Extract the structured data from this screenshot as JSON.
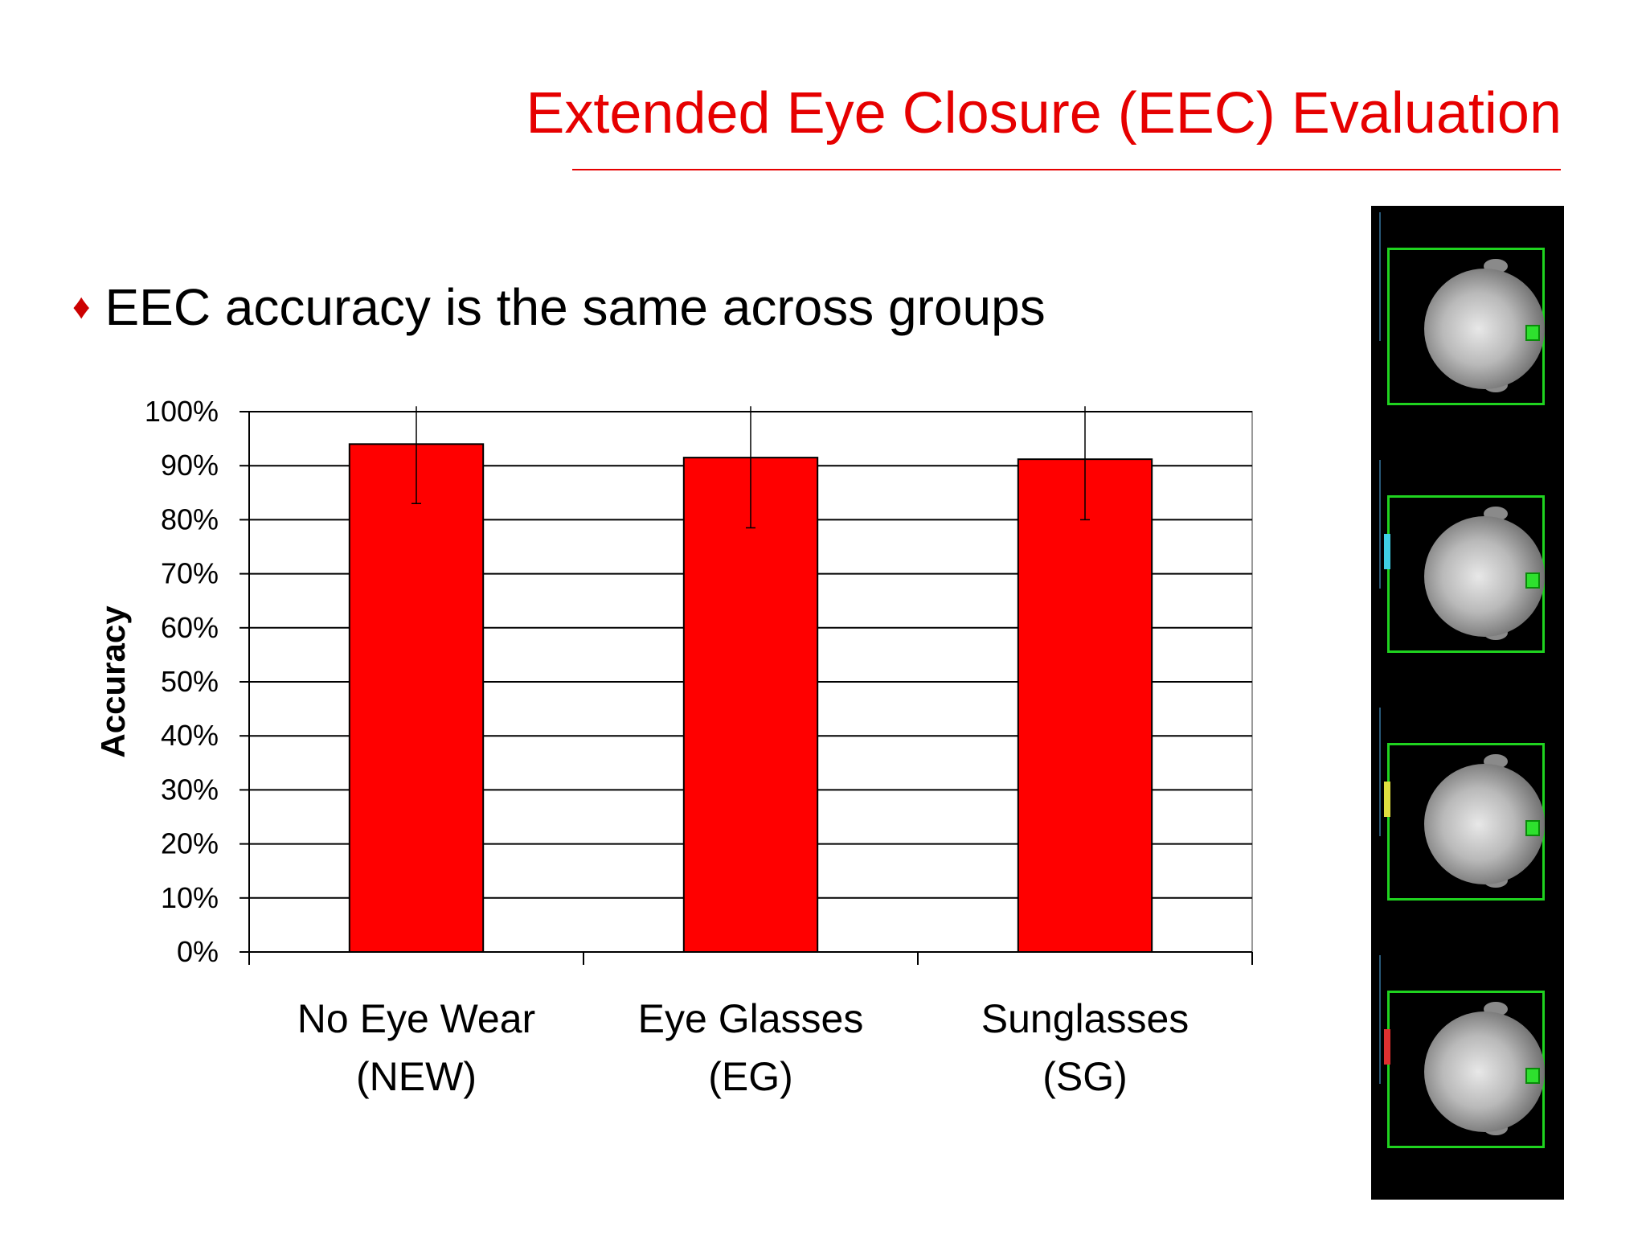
{
  "slide": {
    "title": "Extended Eye Closure (EEC) Evaluation",
    "bullet_symbol": "♦",
    "bullet_text": "EEC accuracy is the same across groups"
  },
  "colors": {
    "title": "#e60000",
    "bar": "#ff0000",
    "frame_box": "#1fd31f"
  },
  "chart_data": {
    "type": "bar",
    "categories": [
      [
        "No Eye Wear",
        "(NEW)"
      ],
      [
        "Eye Glasses",
        "(EG)"
      ],
      [
        "Sunglasses",
        "(SG)"
      ]
    ],
    "values": [
      0.94,
      0.915,
      0.912
    ],
    "error_high": [
      1.01,
      1.01,
      1.01
    ],
    "error_low": [
      0.83,
      0.785,
      0.8
    ],
    "ylabel": "Accuracy",
    "ylim": [
      0,
      1
    ],
    "yticks": [
      "0%",
      "10%",
      "20%",
      "30%",
      "40%",
      "50%",
      "60%",
      "70%",
      "80%",
      "90%",
      "100%"
    ],
    "grid": true
  },
  "filmstrip": {
    "frames": 4,
    "readout_colors": [
      "",
      "#3fd0e6",
      "#e0e040",
      "#e03030"
    ]
  }
}
